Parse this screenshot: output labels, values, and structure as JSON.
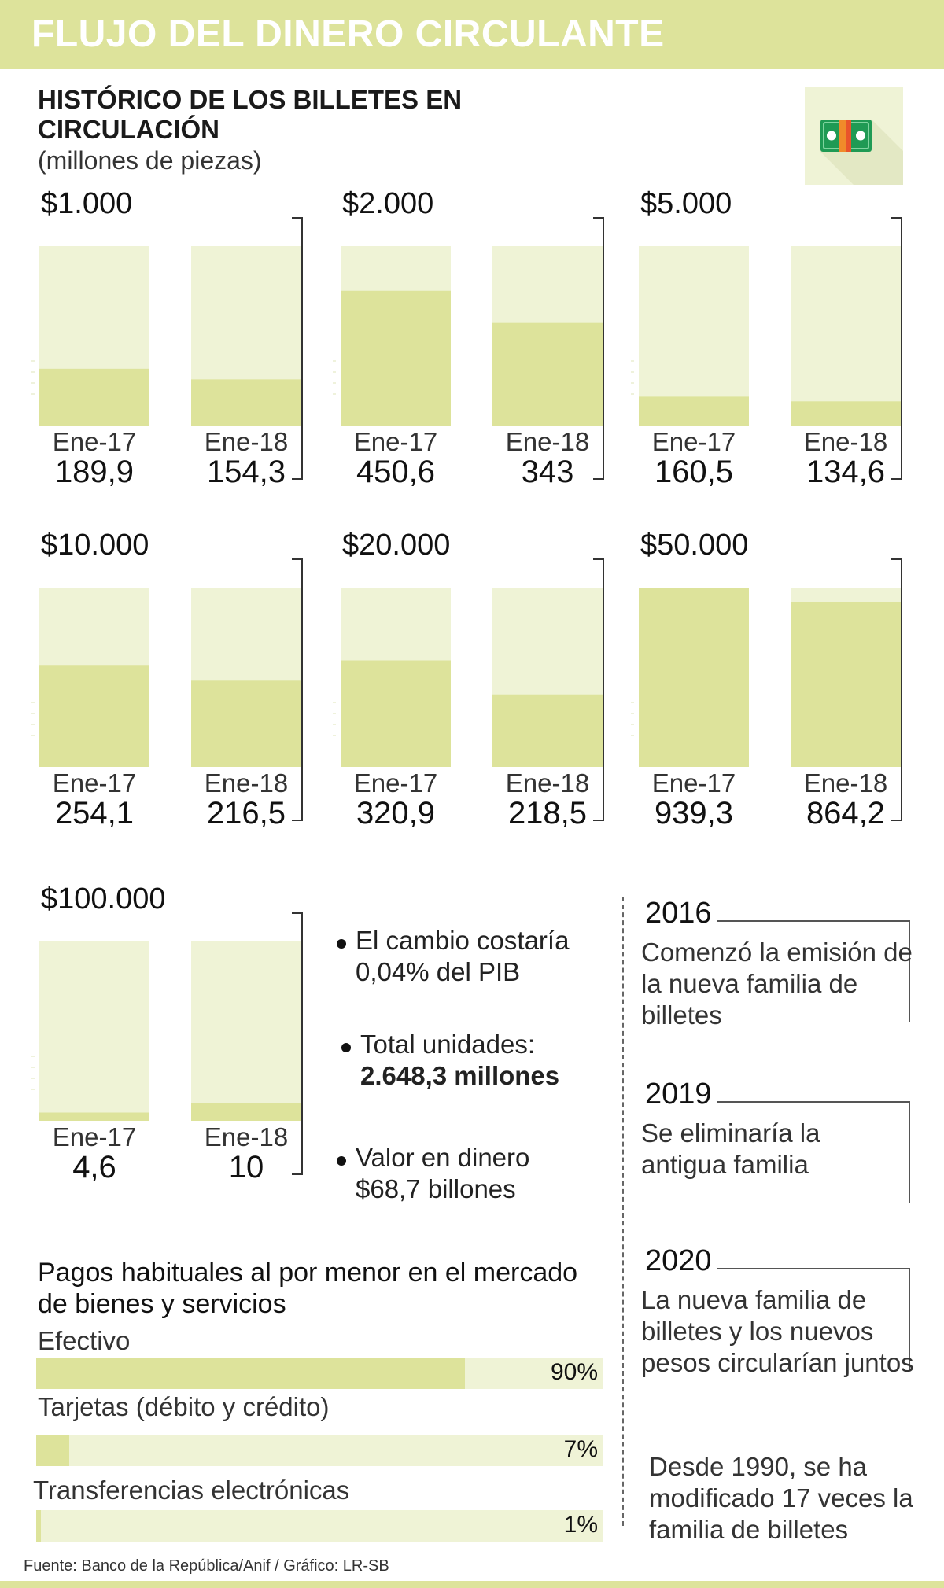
{
  "title": "FLUJO DEL DINERO CIRCULANTE",
  "subtitle": "HISTÓRICO DE LOS BILLETES EN CIRCULACIÓN",
  "unit": "(millones de piezas)",
  "colors": {
    "accent": "#dde39b",
    "track": "#eff3d6",
    "text": "#222222"
  },
  "chart_data": [
    {
      "type": "bar",
      "title": "$1.000",
      "categories": [
        "Ene-17",
        "Ene-18"
      ],
      "values": [
        189.9,
        154.3
      ],
      "value_labels": [
        "189,9",
        "154,3"
      ],
      "ylim": [
        0,
        600
      ]
    },
    {
      "type": "bar",
      "title": "$2.000",
      "categories": [
        "Ene-17",
        "Ene-18"
      ],
      "values": [
        450.6,
        343
      ],
      "value_labels": [
        "450,6",
        "343"
      ],
      "ylim": [
        0,
        600
      ]
    },
    {
      "type": "bar",
      "title": "$5.000",
      "categories": [
        "Ene-17",
        "Ene-18"
      ],
      "values": [
        160.5,
        134.6
      ],
      "value_labels": [
        "160,5",
        "134,6"
      ],
      "ylim": [
        0,
        1000
      ]
    },
    {
      "type": "bar",
      "title": "$10.000",
      "categories": [
        "Ene-17",
        "Ene-18"
      ],
      "values": [
        254.1,
        216.5
      ],
      "value_labels": [
        "254,1",
        "216,5"
      ],
      "ylim": [
        0,
        450
      ]
    },
    {
      "type": "bar",
      "title": "$20.000",
      "categories": [
        "Ene-17",
        "Ene-18"
      ],
      "values": [
        320.9,
        218.5
      ],
      "value_labels": [
        "320,9",
        "218,5"
      ],
      "ylim": [
        0,
        540
      ]
    },
    {
      "type": "bar",
      "title": "$50.000",
      "categories": [
        "Ene-17",
        "Ene-18"
      ],
      "values": [
        939.3,
        864.2
      ],
      "value_labels": [
        "939,3",
        "864,2"
      ],
      "ylim": [
        0,
        939.3
      ]
    },
    {
      "type": "bar",
      "title": "$100.000",
      "categories": [
        "Ene-17",
        "Ene-18"
      ],
      "values": [
        4.6,
        10
      ],
      "value_labels": [
        "4,6",
        "10"
      ],
      "ylim": [
        0,
        100
      ]
    }
  ],
  "facts": [
    {
      "line1": "El cambio costaría",
      "line2": "0,04% del PIB"
    },
    {
      "line1": "Total unidades:",
      "line2": "2.648,3 millones"
    },
    {
      "line1": "Valor en dinero",
      "line2": "$68,7 billones"
    }
  ],
  "timeline": [
    {
      "year": "2016",
      "text": "Comenzó la emisión de la nueva familia de billetes"
    },
    {
      "year": "2019",
      "text": "Se eliminaría la antigua familia"
    },
    {
      "year": "2020",
      "text": "La nueva familia  de billetes y los nuevos pesos circularían juntos"
    }
  ],
  "timeline_note": "Desde 1990, se ha modificado 17 veces la familia de billetes",
  "payments": {
    "title": "Pagos habituales al por menor en el mercado de bienes y servicios",
    "items": [
      {
        "label": "Efectivo",
        "value": 90,
        "value_label": "90%"
      },
      {
        "label": "Tarjetas (débito y crédito)",
        "value": 7,
        "value_label": "7%"
      },
      {
        "label": "Transferencias electrónicas",
        "value": 1,
        "value_label": "1%"
      }
    ]
  },
  "source": "Fuente: Banco de la República/Anif  / Gráfico: LR-SB",
  "icon": "banknote-icon"
}
